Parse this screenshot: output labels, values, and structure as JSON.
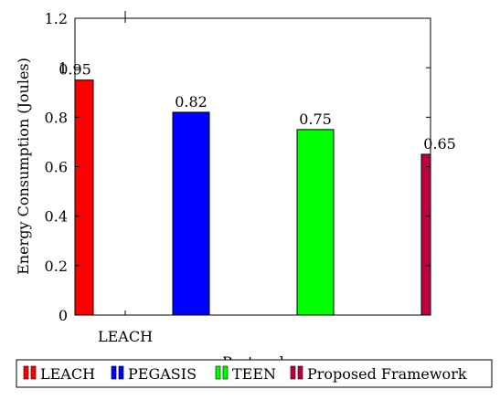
{
  "chart_data": {
    "type": "bar",
    "ylabel": "Energy Consumption (Joules)",
    "xlabel": "Protocol",
    "x_tick_labels": [
      "LEACH"
    ],
    "ylim": [
      0,
      1.2
    ],
    "y_ticks": [
      0,
      0.2,
      0.4,
      0.6,
      0.8,
      1.0,
      1.2
    ],
    "y_tick_labels": [
      "0",
      "0.2",
      "0.4",
      "0.6",
      "0.8",
      "1",
      "1.2"
    ],
    "series": [
      {
        "name": "LEACH",
        "values": [
          0.95
        ],
        "value_label": "0.95",
        "color": "#ff0000"
      },
      {
        "name": "PEGASIS",
        "values": [
          0.82
        ],
        "value_label": "0.82",
        "color": "#0000ff"
      },
      {
        "name": "TEEN",
        "values": [
          0.75
        ],
        "value_label": "0.75",
        "color": "#00ff00"
      },
      {
        "name": "Proposed Framework",
        "values": [
          0.65
        ],
        "value_label": "0.65",
        "color": "#bf0040"
      }
    ],
    "grid": false,
    "legend_position": "bottom"
  }
}
